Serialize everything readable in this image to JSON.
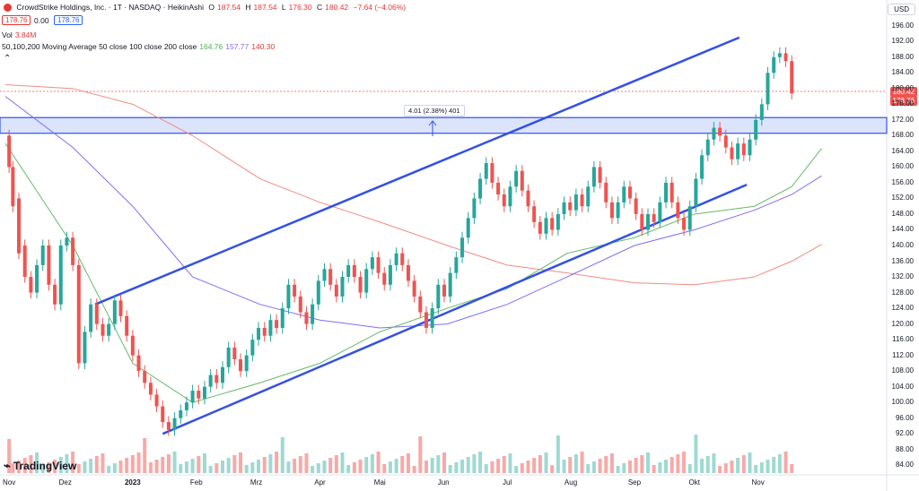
{
  "header": {
    "title": "CrowdStrike Holdings, Inc. · 1T · NASDAQ · HeikinAshi",
    "open_label": "O",
    "open": "187.54",
    "high_label": "H",
    "high": "187.54",
    "low_label": "L",
    "low": "176.30",
    "close_label": "C",
    "close": "180.42",
    "change": "−7.64 (−4.06%)",
    "price_box1": "178.76",
    "price_box1_extra": "0.00",
    "price_box2": "178.76",
    "vol_label": "Vol",
    "vol_value": "3.84M",
    "ma_label": "50,100,200 Moving Average 50 close 100 close 200 close",
    "ma50": "164.76",
    "ma100": "157.77",
    "ma200": "140.30",
    "currency": "USD",
    "logo": "TradingView"
  },
  "measure_label": "4.01 (2.38%) 401",
  "price_labels": {
    "last": "180.42",
    "prev": "178.76"
  },
  "colors": {
    "up": "#26a69a",
    "down": "#ef5350",
    "ma50": "#66bb6a",
    "ma100": "#7e6ff2",
    "ma200": "#f28b82",
    "channel": "#3350e6",
    "zone": "#dbe4fb"
  },
  "chart_data": {
    "type": "candlestick",
    "y_ticks": [
      "196.00",
      "192.00",
      "188.00",
      "184.00",
      "180.00",
      "176.00",
      "172.00",
      "168.00",
      "164.00",
      "160.00",
      "156.00",
      "152.00",
      "148.00",
      "144.00",
      "140.00",
      "136.00",
      "132.00",
      "128.00",
      "124.00",
      "120.00",
      "116.00",
      "112.00",
      "108.00",
      "104.00",
      "100.00",
      "96.00",
      "92.00",
      "88.00",
      "84.00"
    ],
    "x_ticks": [
      "Nov",
      "Dez",
      "2023",
      "Feb",
      "Mrz",
      "Apr",
      "Mai",
      "Jun",
      "Jul",
      "Aug",
      "Sep",
      "Okt",
      "Nov"
    ],
    "ylim": [
      82,
      198
    ],
    "channel_upper": [
      [
        2022.95,
        125
      ],
      [
        2023.81,
        193
      ]
    ],
    "channel_lower": [
      [
        2023.04,
        92
      ],
      [
        2023.82,
        155.5
      ]
    ],
    "zone": [
      168.6,
      172.6
    ],
    "ma50": [
      [
        2022.83,
        166
      ],
      [
        2022.92,
        140
      ],
      [
        2023.0,
        110
      ],
      [
        2023.08,
        100
      ],
      [
        2023.17,
        105
      ],
      [
        2023.25,
        110
      ],
      [
        2023.33,
        118
      ],
      [
        2023.42,
        124
      ],
      [
        2023.5,
        129
      ],
      [
        2023.58,
        138
      ],
      [
        2023.67,
        142
      ],
      [
        2023.75,
        148
      ],
      [
        2023.83,
        150
      ],
      [
        2023.88,
        155
      ],
      [
        2023.92,
        164.76
      ]
    ],
    "ma100": [
      [
        2022.83,
        178
      ],
      [
        2022.92,
        165
      ],
      [
        2023.0,
        150
      ],
      [
        2023.08,
        132
      ],
      [
        2023.17,
        125
      ],
      [
        2023.25,
        121
      ],
      [
        2023.33,
        119
      ],
      [
        2023.42,
        120
      ],
      [
        2023.5,
        125
      ],
      [
        2023.58,
        132
      ],
      [
        2023.67,
        140
      ],
      [
        2023.75,
        144
      ],
      [
        2023.83,
        149
      ],
      [
        2023.88,
        153
      ],
      [
        2023.92,
        157.77
      ]
    ],
    "ma200": [
      [
        2022.83,
        181
      ],
      [
        2022.92,
        180
      ],
      [
        2023.0,
        176
      ],
      [
        2023.08,
        168
      ],
      [
        2023.17,
        157
      ],
      [
        2023.25,
        151
      ],
      [
        2023.33,
        146
      ],
      [
        2023.42,
        140
      ],
      [
        2023.5,
        135
      ],
      [
        2023.58,
        133
      ],
      [
        2023.67,
        130.5
      ],
      [
        2023.75,
        130
      ],
      [
        2023.83,
        132
      ],
      [
        2023.88,
        136
      ],
      [
        2023.92,
        140.3
      ]
    ],
    "candles": [
      [
        2022.835,
        168,
        160
      ],
      [
        2022.84,
        160,
        150
      ],
      [
        2022.848,
        152,
        138
      ],
      [
        2022.856,
        140,
        132
      ],
      [
        2022.864,
        132,
        128
      ],
      [
        2022.872,
        128,
        135
      ],
      [
        2022.88,
        135,
        140
      ],
      [
        2022.888,
        140,
        130
      ],
      [
        2022.896,
        130,
        125
      ],
      [
        2022.904,
        125,
        140
      ],
      [
        2022.912,
        140,
        142
      ],
      [
        2022.92,
        142,
        135
      ],
      [
        2022.928,
        135,
        110
      ],
      [
        2022.936,
        110,
        118
      ],
      [
        2022.944,
        118,
        125
      ],
      [
        2022.952,
        125,
        120
      ],
      [
        2022.96,
        120,
        117
      ],
      [
        2022.968,
        117,
        120
      ],
      [
        2022.976,
        120,
        126
      ],
      [
        2022.984,
        126,
        122
      ],
      [
        2022.992,
        122,
        117
      ],
      [
        2023.0,
        117,
        112
      ],
      [
        2023.008,
        112,
        108
      ],
      [
        2023.016,
        108,
        105
      ],
      [
        2023.024,
        105,
        102
      ],
      [
        2023.032,
        102,
        99
      ],
      [
        2023.04,
        99,
        95
      ],
      [
        2023.048,
        95,
        93
      ],
      [
        2023.056,
        93,
        96
      ],
      [
        2023.064,
        96,
        98
      ],
      [
        2023.072,
        98,
        100
      ],
      [
        2023.08,
        100,
        103
      ],
      [
        2023.088,
        103,
        101
      ],
      [
        2023.096,
        101,
        104
      ],
      [
        2023.104,
        104,
        107
      ],
      [
        2023.112,
        107,
        105
      ],
      [
        2023.12,
        105,
        109
      ],
      [
        2023.128,
        109,
        114
      ],
      [
        2023.136,
        114,
        111
      ],
      [
        2023.144,
        111,
        108
      ],
      [
        2023.152,
        108,
        112
      ],
      [
        2023.16,
        112,
        116
      ],
      [
        2023.168,
        116,
        119
      ],
      [
        2023.176,
        119,
        117
      ],
      [
        2023.184,
        117,
        121
      ],
      [
        2023.192,
        121,
        119
      ],
      [
        2023.2,
        119,
        124
      ],
      [
        2023.208,
        124,
        130
      ],
      [
        2023.216,
        130,
        127
      ],
      [
        2023.224,
        127,
        123
      ],
      [
        2023.232,
        123,
        120
      ],
      [
        2023.24,
        120,
        125
      ],
      [
        2023.248,
        125,
        131
      ],
      [
        2023.256,
        131,
        134
      ],
      [
        2023.264,
        134,
        130
      ],
      [
        2023.272,
        130,
        127
      ],
      [
        2023.28,
        127,
        132
      ],
      [
        2023.288,
        132,
        135
      ],
      [
        2023.296,
        135,
        132
      ],
      [
        2023.304,
        132,
        128
      ],
      [
        2023.312,
        128,
        134
      ],
      [
        2023.32,
        134,
        137
      ],
      [
        2023.328,
        137,
        133
      ],
      [
        2023.336,
        133,
        130
      ],
      [
        2023.344,
        130,
        135
      ],
      [
        2023.352,
        135,
        138
      ],
      [
        2023.36,
        138,
        135
      ],
      [
        2023.368,
        135,
        131
      ],
      [
        2023.376,
        131,
        127
      ],
      [
        2023.384,
        127,
        123
      ],
      [
        2023.392,
        123,
        119
      ],
      [
        2023.4,
        119,
        124
      ],
      [
        2023.408,
        124,
        130
      ],
      [
        2023.416,
        130,
        127
      ],
      [
        2023.424,
        127,
        133
      ],
      [
        2023.432,
        133,
        137
      ],
      [
        2023.44,
        137,
        142
      ],
      [
        2023.448,
        142,
        147
      ],
      [
        2023.456,
        147,
        152
      ],
      [
        2023.464,
        152,
        157
      ],
      [
        2023.472,
        157,
        161
      ],
      [
        2023.48,
        161,
        156
      ],
      [
        2023.488,
        156,
        153
      ],
      [
        2023.496,
        153,
        150
      ],
      [
        2023.504,
        150,
        155
      ],
      [
        2023.512,
        155,
        159
      ],
      [
        2023.52,
        159,
        154
      ],
      [
        2023.528,
        154,
        150
      ],
      [
        2023.536,
        150,
        146
      ],
      [
        2023.544,
        146,
        143
      ],
      [
        2023.552,
        143,
        147
      ],
      [
        2023.56,
        147,
        144
      ],
      [
        2023.568,
        144,
        148
      ],
      [
        2023.576,
        148,
        151
      ],
      [
        2023.584,
        151,
        149
      ],
      [
        2023.592,
        149,
        153
      ],
      [
        2023.6,
        153,
        150
      ],
      [
        2023.608,
        150,
        155
      ],
      [
        2023.616,
        155,
        160
      ],
      [
        2023.624,
        160,
        156
      ],
      [
        2023.632,
        156,
        151
      ],
      [
        2023.64,
        151,
        147
      ],
      [
        2023.648,
        147,
        151
      ],
      [
        2023.656,
        151,
        155
      ],
      [
        2023.664,
        155,
        152
      ],
      [
        2023.672,
        152,
        148
      ],
      [
        2023.68,
        148,
        144
      ],
      [
        2023.688,
        144,
        148
      ],
      [
        2023.696,
        148,
        146
      ],
      [
        2023.704,
        146,
        151
      ],
      [
        2023.712,
        151,
        156
      ],
      [
        2023.72,
        156,
        151
      ],
      [
        2023.728,
        151,
        147
      ],
      [
        2023.736,
        147,
        144
      ],
      [
        2023.744,
        144,
        150
      ],
      [
        2023.752,
        150,
        157
      ],
      [
        2023.76,
        157,
        163
      ],
      [
        2023.768,
        163,
        167
      ],
      [
        2023.776,
        167,
        170
      ],
      [
        2023.784,
        170,
        168
      ],
      [
        2023.792,
        168,
        165
      ],
      [
        2023.8,
        165,
        162
      ],
      [
        2023.808,
        162,
        166
      ],
      [
        2023.816,
        166,
        163
      ],
      [
        2023.824,
        163,
        167
      ],
      [
        2023.832,
        167,
        172
      ],
      [
        2023.84,
        172,
        176
      ],
      [
        2023.848,
        176,
        184
      ],
      [
        2023.856,
        184,
        188
      ],
      [
        2023.864,
        188,
        189
      ],
      [
        2023.872,
        189,
        187
      ],
      [
        2023.88,
        187,
        178.76
      ]
    ],
    "volumes": []
  }
}
